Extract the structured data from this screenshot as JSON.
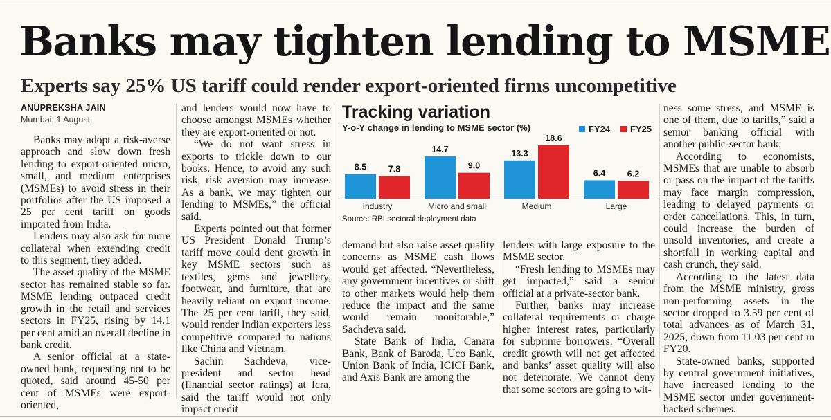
{
  "article": {
    "headline": "Banks may tighten lending to MSMEs",
    "subheadline": "Experts say 25% US tariff could render export-oriented firms uncompetitive",
    "byline": "ANUPREKSHA JAIN",
    "dateline": "Mumbai, 1 August"
  },
  "columns": {
    "col1": [
      "Banks may adopt a risk-averse approach and slow down fresh lending to export-oriented micro, small, and medium enterprises (MSMEs) to avoid stress in their portfolios after the US imposed a 25 per cent tariff on goods imported from India.",
      "Lenders may also ask for more collateral when extending credit to this segment, they added.",
      "The asset quality of the MSME sector has remained stable so far. MSME lending outpaced credit growth in the retail and services sectors in FY25, rising by 14.1 per cent amid an overall decline in bank credit.",
      "A senior official at a state-owned bank, requesting not to be quoted, said around 45-50 per cent of MSMEs were export-oriented,"
    ],
    "col2": [
      "and lenders would now have to choose amongst MSMEs whether they are export-oriented or not.",
      "“We do not want stress in exports to trickle down to our books. Hence, to avoid any such risk, risk aversion may increase. As a bank, we may tighten our lending to MSMEs,” the official said.",
      "Experts pointed out that former US President Donald Trump’s tariff move could dent growth in key MSME sectors such as textiles, gems and jewellery, footwear, and furniture, that are heavily reliant on export income. The 25 per cent tariff, they said, would render Indian exporters less competitive compared to nations like China and Vietnam.",
      "Sachin Sachdeva, vice-president and sector head (financial sector ratings) at Icra, said the tariff would not only impact credit"
    ],
    "col3": [
      "demand but also raise asset quality concerns as MSME cash flows would get affected. “Nevertheless, any government incentives or shift to other markets would help them reduce the impact and the same would remain monitorable,” Sachdeva said.",
      "State Bank of India, Canara Bank, Bank of Baroda, Uco Bank, Union Bank of India, ICICI Bank, and Axis Bank are among the"
    ],
    "col4": [
      "lenders with large exposure to the MSME sector.",
      "“Fresh lending to MSMEs may get impacted,” said a senior official at a private-sector bank.",
      "Further, banks may increase collateral requirements or charge higher interest rates, particularly for subprime borrowers. “Overall credit growth will not get affected and banks’ asset quality will also not deteriorate. We cannot deny that some sectors are going to wit-"
    ],
    "col5": [
      "ness some stress, and MSME is one of them, due to tariffs,” said a senior banking official with another public-sector bank.",
      "According to economists, MSMEs that are unable to absorb or pass on the impact of the tariffs may face margin compression, leading to delayed payments or order cancellations. This, in turn, could increase the burden of unsold inventories, and create a shortfall in working capital and cash crunch, they said.",
      "According to the latest data from the MSME ministry, gross non-performing assets in the sector dropped to 3.59 per cent of total advances as of March 31, 2025, down from 11.03 per cent in FY20.",
      "State-owned banks, supported by central government initiatives, have increased lending to the MSME sector under government-backed schemes."
    ]
  },
  "chart_data": {
    "type": "bar",
    "title": "Tracking variation",
    "subtitle": "Y-o-Y change in lending to MSME sector (%)",
    "source": "Source: RBI sectoral deployment data",
    "categories": [
      "Industry",
      "Micro and small",
      "Medium",
      "Large"
    ],
    "series": [
      {
        "name": "FY24",
        "color": "#1f94d6",
        "values": [
          8.5,
          14.7,
          13.3,
          6.4
        ]
      },
      {
        "name": "FY25",
        "color": "#e0262b",
        "values": [
          7.8,
          9.0,
          18.6,
          6.2
        ]
      }
    ],
    "value_labels": {
      "FY24": [
        "8.5",
        "14.7",
        "13.3",
        "6.4"
      ],
      "FY25": [
        "7.8",
        "9.0",
        "18.6",
        "6.2"
      ]
    },
    "ylim": [
      0,
      20
    ],
    "legend_position": "top-right",
    "xlabel": "",
    "ylabel": ""
  }
}
